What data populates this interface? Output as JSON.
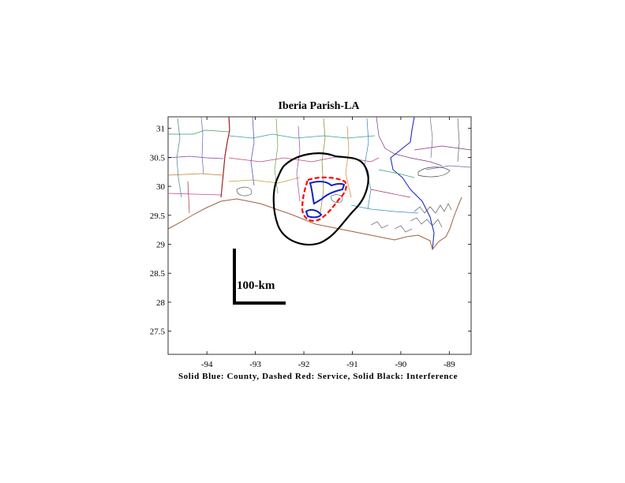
{
  "title": "Iberia Parish-LA",
  "caption": "Solid Blue: County, Dashed Red: Service, Solid Black: Interference",
  "scale_bar_label": "100-km",
  "axes": {
    "x_ticks": [
      -94,
      -93,
      -92,
      -91,
      -90,
      -89
    ],
    "x_tick_labels": [
      "-94",
      "-93",
      "-92",
      "-91",
      "-90",
      "-89"
    ],
    "y_ticks": [
      31,
      30.5,
      30,
      29.5,
      29,
      28.5,
      28,
      27.5
    ],
    "y_tick_labels": [
      "31",
      "30.5",
      "30",
      "29.5",
      "29",
      "28.5",
      "28",
      "27.5"
    ],
    "xlim": [
      -94.8,
      -88.55
    ],
    "ylim": [
      27.1,
      31.2
    ]
  },
  "colors": {
    "county": "#1020c0",
    "service": "#ff0000",
    "interference": "#000000",
    "coast": "#a06040"
  }
}
